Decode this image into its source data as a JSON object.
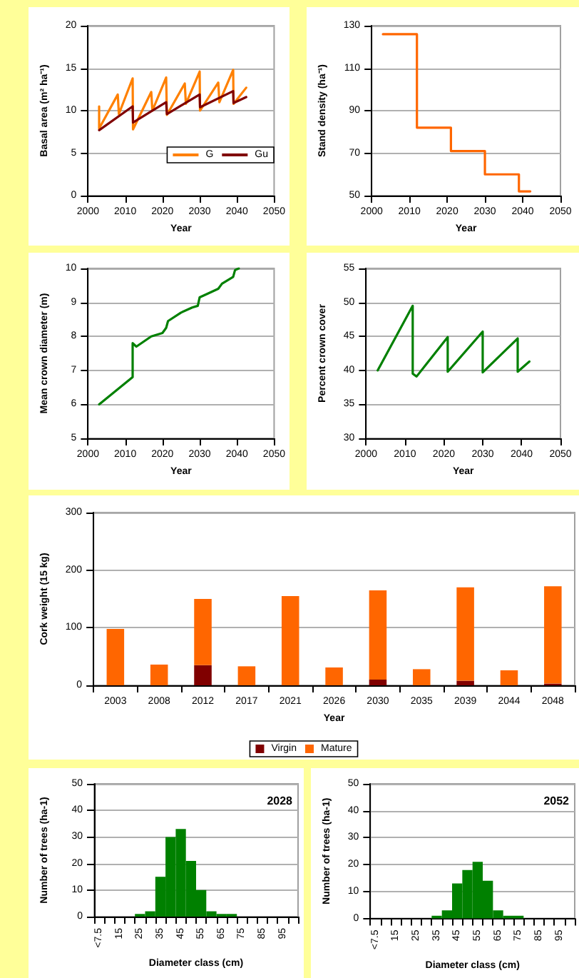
{
  "chart_data": [
    {
      "type": "line",
      "xlabel": "Year",
      "ylabel": "Basal area (m² ha⁻¹)",
      "xlim": [
        2000,
        2050
      ],
      "xticks": [
        2000,
        2010,
        2020,
        2030,
        2040,
        2050
      ],
      "ylim": [
        0,
        20
      ],
      "yticks": [
        0,
        5,
        10,
        15,
        20
      ],
      "grid": "y",
      "legend": "bottom right",
      "marker": "none",
      "line_style": "solid",
      "series": [
        {
          "name": "G",
          "color": "#ff8000",
          "x": [
            2003,
            2003,
            2008,
            2008.3,
            2012,
            2012.1,
            2017,
            2017.3,
            2021,
            2021.2,
            2026,
            2026.3,
            2030,
            2030.1,
            2035,
            2035.3,
            2039,
            2039.1,
            2042.5
          ],
          "values": [
            10.5,
            7.9,
            11.9,
            9.6,
            13.8,
            7.8,
            12.2,
            10.0,
            13.9,
            9.5,
            13.2,
            10.8,
            14.6,
            10.0,
            13.3,
            11.0,
            14.8,
            10.8,
            12.7
          ]
        },
        {
          "name": "Gu",
          "color": "#800000",
          "x": [
            2003,
            2012,
            2012.1,
            2021,
            2021.2,
            2030,
            2030.1,
            2039,
            2039.1,
            2042.5
          ],
          "values": [
            7.7,
            10.5,
            8.6,
            11.0,
            9.6,
            11.9,
            10.4,
            12.3,
            10.9,
            11.6
          ]
        }
      ]
    },
    {
      "type": "line",
      "xlabel": "Year",
      "ylabel": "Stand density (ha⁻¹)",
      "xlim": [
        2000,
        2050
      ],
      "xticks": [
        2000,
        2010,
        2020,
        2030,
        2040,
        2050
      ],
      "ylim": [
        50,
        130
      ],
      "yticks": [
        50,
        70,
        90,
        110,
        130
      ],
      "grid": "y",
      "marker": "none",
      "line_style": "solid",
      "series": [
        {
          "color": "#ff6600",
          "x": [
            2003,
            2012,
            2012,
            2021,
            2021,
            2030,
            2030,
            2039,
            2039,
            2042
          ],
          "values": [
            126,
            126,
            82,
            82,
            71,
            71,
            60,
            60,
            52,
            52
          ]
        }
      ]
    },
    {
      "type": "line",
      "xlabel": "Year",
      "ylabel": "Mean crown diameter (m)",
      "xlim": [
        2000,
        2050
      ],
      "xticks": [
        2000,
        2010,
        2020,
        2030,
        2040,
        2050
      ],
      "ylim": [
        5,
        10
      ],
      "yticks": [
        5,
        6,
        7,
        8,
        9,
        10
      ],
      "grid": "y",
      "marker": "none",
      "line_style": "solid",
      "series": [
        {
          "color": "#008000",
          "x": [
            2003,
            2012,
            2012,
            2013,
            2017,
            2020,
            2021,
            2021.5,
            2025,
            2028,
            2029.5,
            2030,
            2032,
            2035,
            2036,
            2039,
            2039.5,
            2040.5
          ],
          "values": [
            6.0,
            6.8,
            7.8,
            7.7,
            8.0,
            8.1,
            8.25,
            8.45,
            8.7,
            8.85,
            8.9,
            9.15,
            9.25,
            9.4,
            9.55,
            9.75,
            9.95,
            10.0
          ]
        }
      ]
    },
    {
      "type": "line",
      "xlabel": "Year",
      "ylabel": "Percent crown cover",
      "xlim": [
        2000,
        2050
      ],
      "xticks": [
        2000,
        2010,
        2020,
        2030,
        2040,
        2050
      ],
      "ylim": [
        30,
        55
      ],
      "yticks": [
        30,
        35,
        40,
        45,
        50,
        55
      ],
      "grid": "y",
      "marker": "none",
      "line_style": "solid",
      "series": [
        {
          "color": "#008000",
          "x": [
            2003,
            2012,
            2012,
            2013,
            2021,
            2021,
            2030,
            2030,
            2039,
            2039,
            2042
          ],
          "values": [
            40,
            49.5,
            39.5,
            39.1,
            44.9,
            39.8,
            45.7,
            39.7,
            44.7,
            39.8,
            41.3
          ]
        }
      ]
    },
    {
      "type": "bar",
      "stacked": true,
      "xlabel": "Year",
      "ylabel": "Cork weight (15 kg)",
      "categories": [
        "2003",
        "2008",
        "2012",
        "2017",
        "2021",
        "2026",
        "2030",
        "2035",
        "2039",
        "2044",
        "2048"
      ],
      "ylim": [
        0,
        300
      ],
      "yticks": [
        0,
        100,
        200,
        300
      ],
      "grid": "y",
      "legend": "bottom",
      "series": [
        {
          "name": "Virgin",
          "color": "#800000",
          "values": [
            0,
            0,
            35,
            0,
            0,
            0,
            10,
            0,
            8,
            0,
            3
          ]
        },
        {
          "name": "Mature",
          "color": "#ff6600",
          "values": [
            98,
            36,
            115,
            33,
            155,
            31,
            155,
            28,
            162,
            26,
            169
          ]
        }
      ]
    },
    {
      "type": "bar",
      "xlabel": "Diameter class (cm)",
      "ylabel": "Number of trees (ha-1)",
      "annotations": [
        "2028"
      ],
      "categories": [
        "<7.5",
        null,
        "15",
        null,
        "25",
        null,
        "35",
        null,
        "45",
        null,
        "55",
        null,
        "65",
        null,
        "75",
        null,
        "85",
        null,
        "95",
        null
      ],
      "ylim": [
        0,
        50
      ],
      "yticks": [
        0,
        10,
        20,
        30,
        40,
        50
      ],
      "grid": "y",
      "series": [
        {
          "color": "#008000",
          "values": [
            0,
            0,
            0,
            0,
            1,
            2,
            15,
            30,
            33,
            21,
            10,
            2,
            1,
            1,
            0,
            0,
            0,
            0,
            0,
            0
          ]
        }
      ]
    },
    {
      "type": "bar",
      "xlabel": "Diameter class (cm)",
      "ylabel": "Number of trees (ha-1)",
      "annotations": [
        "2052"
      ],
      "categories": [
        "<7.5",
        null,
        "15",
        null,
        "25",
        null,
        "35",
        null,
        "45",
        null,
        "55",
        null,
        "65",
        null,
        "75",
        null,
        "85",
        null,
        "95",
        null
      ],
      "ylim": [
        0,
        50
      ],
      "yticks": [
        0,
        10,
        20,
        30,
        40,
        50
      ],
      "grid": "y",
      "series": [
        {
          "color": "#008000",
          "values": [
            0,
            0,
            0,
            0,
            0,
            0,
            1,
            3,
            13,
            18,
            21,
            14,
            3,
            1,
            1,
            0,
            0,
            0,
            0,
            0
          ]
        }
      ]
    }
  ]
}
